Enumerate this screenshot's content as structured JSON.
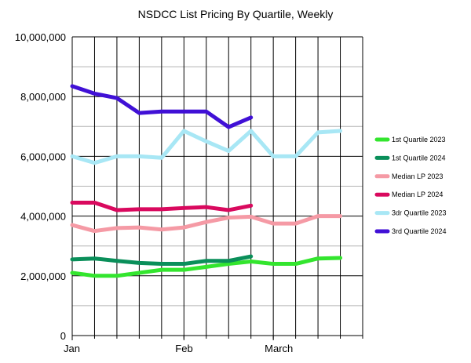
{
  "chart_data": {
    "type": "line",
    "title": "NSDCC List Pricing By Quartile, Weekly",
    "xlabel": "",
    "ylabel": "",
    "ylim": [
      0,
      10000000
    ],
    "y_ticks": [
      0,
      2000000,
      4000000,
      6000000,
      8000000,
      10000000
    ],
    "y_tick_labels": [
      "0",
      "2,000,000",
      "4,000,000",
      "6,000,000",
      "8,000,000",
      "10,000,000"
    ],
    "x_tick_labels": [
      {
        "label": "Jan",
        "week": 0
      },
      {
        "label": "Feb",
        "week": 5
      },
      {
        "label": "March",
        "week": 9
      }
    ],
    "weeks": 13,
    "grid": true,
    "legend_position": "right",
    "series": [
      {
        "name": "1st Quartile 2023",
        "color": "#33e52e",
        "values": [
          2100000,
          2000000,
          2000000,
          2100000,
          2200000,
          2200000,
          2300000,
          2400000,
          2480000,
          2400000,
          2400000,
          2580000,
          2600000
        ]
      },
      {
        "name": "1st Quartile 2024",
        "color": "#0a8f5a",
        "values": [
          2550000,
          2580000,
          2500000,
          2430000,
          2400000,
          2400000,
          2500000,
          2500000,
          2650000
        ]
      },
      {
        "name": "Median LP 2023",
        "color": "#f59aa5",
        "values": [
          3700000,
          3500000,
          3600000,
          3620000,
          3550000,
          3620000,
          3800000,
          3950000,
          3980000,
          3750000,
          3750000,
          4000000,
          4000000
        ]
      },
      {
        "name": "Median LP 2024",
        "color": "#d9095e",
        "values": [
          4450000,
          4450000,
          4200000,
          4230000,
          4230000,
          4270000,
          4300000,
          4200000,
          4350000
        ]
      },
      {
        "name": "3dr Quartile 2023",
        "color": "#a8e7f5",
        "values": [
          6000000,
          5780000,
          6000000,
          6000000,
          5950000,
          6850000,
          6500000,
          6180000,
          6850000,
          6000000,
          6000000,
          6800000,
          6850000
        ]
      },
      {
        "name": "3rd Quartile 2024",
        "color": "#4010d6",
        "values": [
          8350000,
          8100000,
          7950000,
          7450000,
          7500000,
          7500000,
          7500000,
          6980000,
          7300000
        ]
      }
    ]
  }
}
